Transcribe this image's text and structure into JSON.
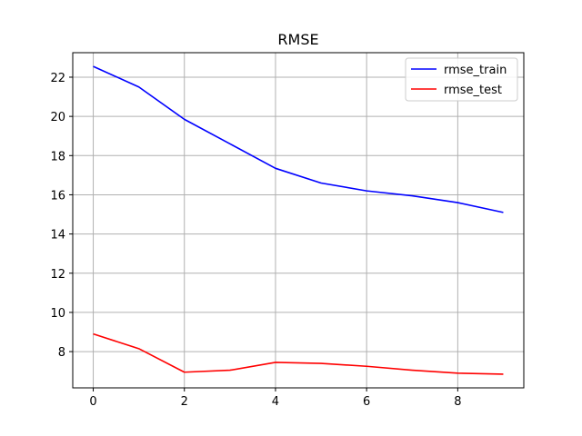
{
  "chart_data": {
    "type": "line",
    "title": "RMSE",
    "xlabel": "",
    "ylabel": "",
    "x": [
      0,
      1,
      2,
      3,
      4,
      5,
      6,
      7,
      8,
      9
    ],
    "xlim": [
      -0.45,
      9.45
    ],
    "ylim": [
      6.15,
      23.25
    ],
    "xticks": [
      0,
      2,
      4,
      6,
      8
    ],
    "yticks": [
      8,
      10,
      12,
      14,
      16,
      18,
      20,
      22
    ],
    "grid": true,
    "legend_position": "top-right",
    "series": [
      {
        "name": "rmse_train",
        "color": "#0000ff",
        "values": [
          22.55,
          21.5,
          19.85,
          18.6,
          17.35,
          16.6,
          16.2,
          15.95,
          15.6,
          15.1
        ]
      },
      {
        "name": "rmse_test",
        "color": "#ff0000",
        "values": [
          8.9,
          8.15,
          6.95,
          7.05,
          7.45,
          7.4,
          7.25,
          7.05,
          6.9,
          6.85
        ]
      }
    ]
  }
}
